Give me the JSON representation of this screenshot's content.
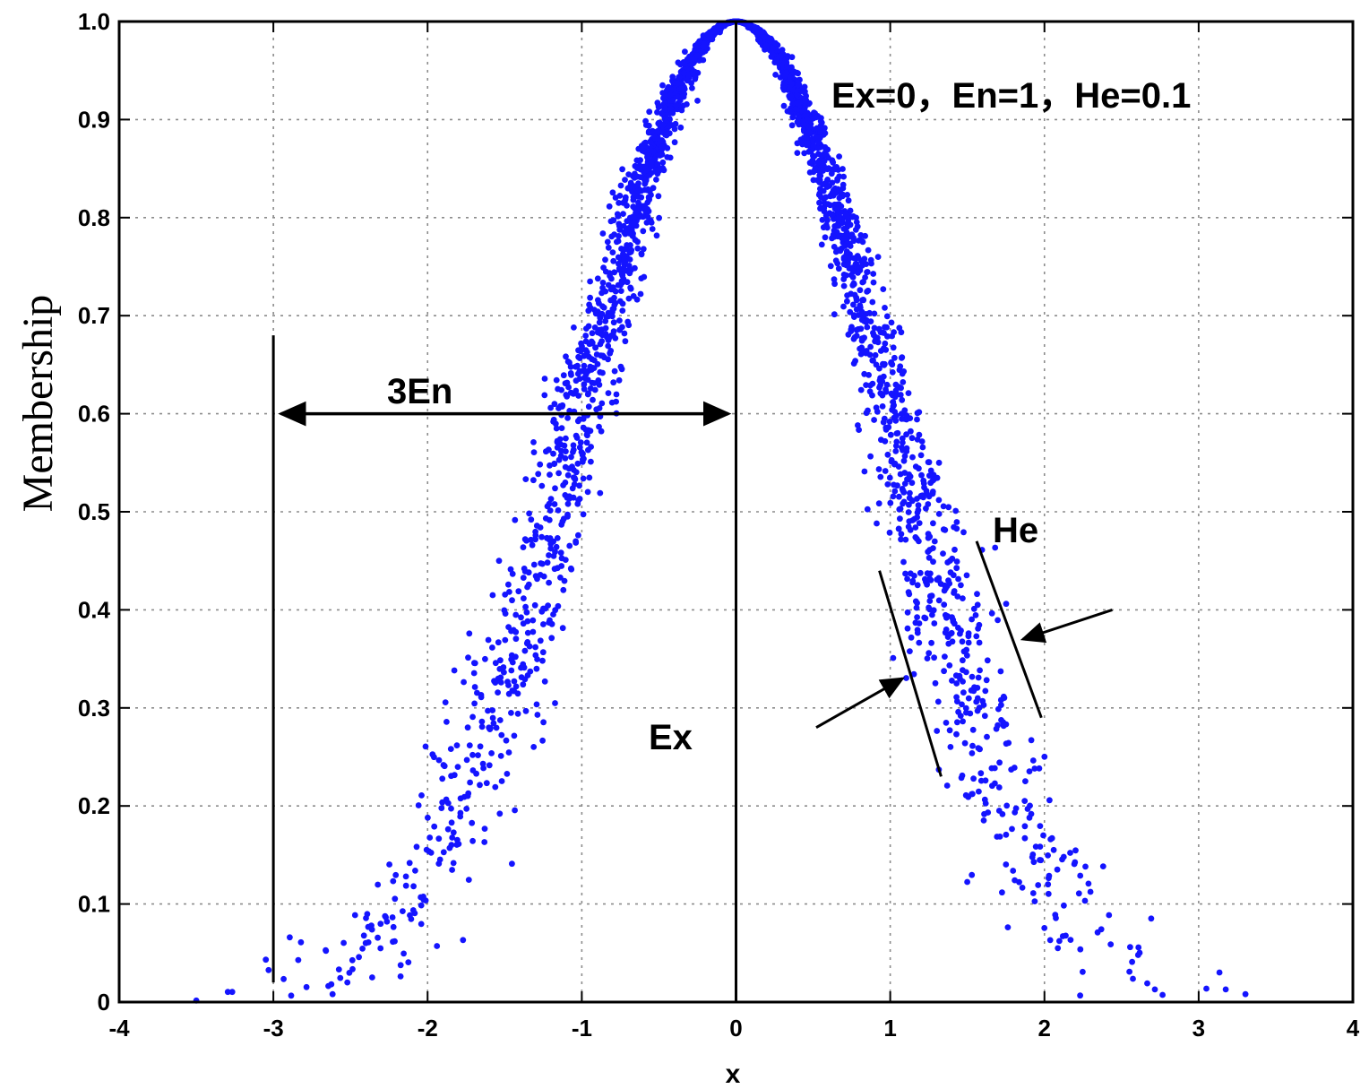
{
  "chart_data": {
    "type": "scatter",
    "title": "",
    "xlabel": "x",
    "ylabel": "Membership",
    "xlim": [
      -4,
      4
    ],
    "ylim": [
      0,
      1
    ],
    "xticks": [
      -4,
      -3,
      -2,
      -1,
      0,
      1,
      2,
      3,
      4
    ],
    "xtick_labels": [
      "-4",
      "-3",
      "-2",
      "-1",
      "0",
      "1",
      "2",
      "3",
      "4"
    ],
    "yticks": [
      0,
      0.1,
      0.2,
      0.3,
      0.4,
      0.5,
      0.6,
      0.7,
      0.8,
      0.9,
      1.0
    ],
    "ytick_labels": [
      "0",
      "0.1",
      "0.2",
      "0.3",
      "0.4",
      "0.5",
      "0.6",
      "0.7",
      "0.8",
      "0.9",
      "1.0"
    ],
    "grid": true,
    "series": [
      {
        "color": "#1414ff",
        "marker": "dot",
        "model": "cloud drops around exp(-(x-Ex)^2/(2*En'^2)), En' ~ N(En, He)",
        "Ex": 0,
        "En": 1,
        "He": 0.1,
        "count": 3000
      }
    ],
    "annotations": {
      "params": "Ex=0，En=1，He=0.1",
      "three_en": "3En",
      "ex": "Ex",
      "he": "He"
    }
  }
}
